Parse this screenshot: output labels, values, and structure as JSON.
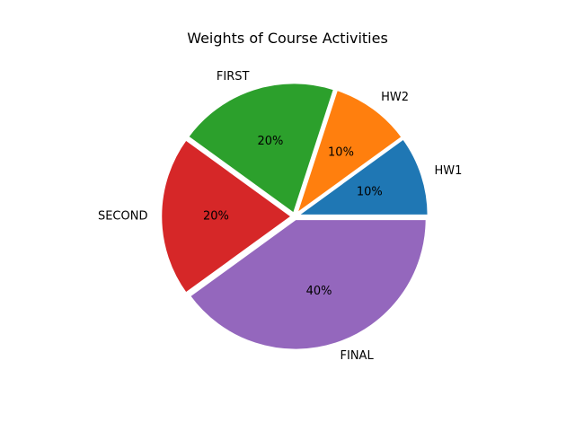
{
  "chart_data": {
    "type": "pie",
    "title": "Weights of Course Activities",
    "labels": [
      "HW1",
      "HW2",
      "FIRST",
      "SECOND",
      "FINAL"
    ],
    "values": [
      10,
      10,
      20,
      20,
      40
    ],
    "percent_labels": [
      "10%",
      "10%",
      "20%",
      "20%",
      "40%"
    ],
    "colors": [
      "#1f77b4",
      "#ff7f0e",
      "#2ca02c",
      "#d62728",
      "#9467bd"
    ],
    "start_angle_deg": 0,
    "direction": "counterclockwise",
    "wedge_edge_color": "#ffffff",
    "legend": "none"
  }
}
